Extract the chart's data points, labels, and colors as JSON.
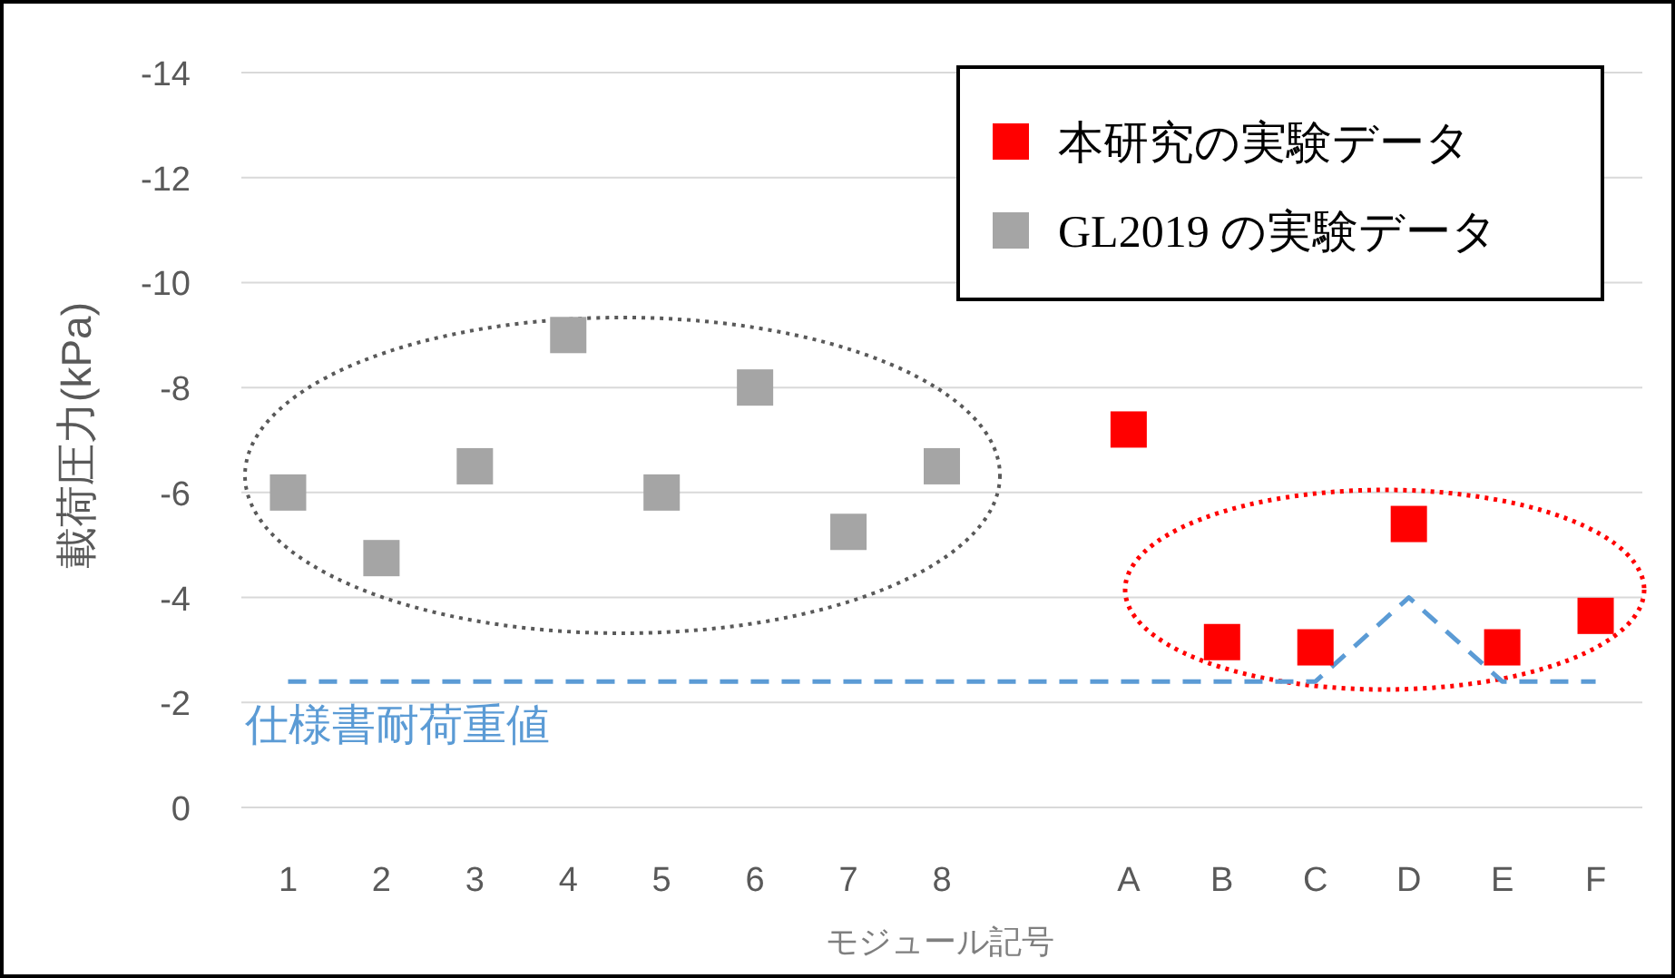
{
  "chart_data": {
    "type": "scatter",
    "ylabel": "載荷圧力(kPa)",
    "xlabel": "モジュール記号",
    "categories": [
      "1",
      "2",
      "3",
      "4",
      "5",
      "6",
      "7",
      "8",
      null,
      "A",
      "B",
      "C",
      "D",
      "E",
      "F"
    ],
    "ylim": [
      0,
      -14
    ],
    "yticks": [
      0,
      -2,
      -4,
      -6,
      -8,
      -10,
      -12,
      -14
    ],
    "grid": "y",
    "legend": "top right",
    "marker": "square",
    "series": [
      {
        "name": "本研究の実験データ",
        "color": "#ff0000",
        "values": [
          null,
          null,
          null,
          null,
          null,
          null,
          null,
          null,
          null,
          -7.2,
          -3.15,
          -3.05,
          -5.4,
          -3.05,
          -3.65
        ]
      },
      {
        "name": "GL2019 の実験データ",
        "color": "#a5a5a5",
        "values": [
          -6,
          -4.75,
          -6.5,
          -9,
          -6,
          -8,
          -5.25,
          -6.5,
          null,
          null,
          null,
          null,
          null,
          null,
          null
        ]
      },
      {
        "name": "仕様書耐荷重値",
        "type": "line",
        "line_style": "dashed",
        "marker": "none",
        "color": "#5b9bd5",
        "values": [
          -2.4,
          -2.4,
          -2.4,
          -2.4,
          -2.4,
          -2.4,
          -2.4,
          -2.4,
          -2.4,
          -2.4,
          -2.4,
          -2.4,
          -4,
          -2.4,
          -2.4
        ]
      }
    ]
  }
}
